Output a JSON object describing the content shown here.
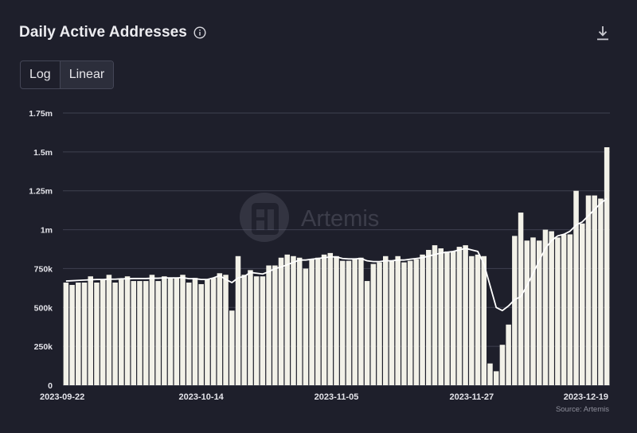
{
  "header": {
    "title": "Daily Active Addresses"
  },
  "toggle": {
    "log_label": "Log",
    "linear_label": "Linear"
  },
  "watermark": "Artemis",
  "source": "Source: Artemis",
  "colors": {
    "bar": "#f2f1e8",
    "line": "#ffffff",
    "grid": "#3e4050",
    "background": "#1e1f2b"
  },
  "chart_data": {
    "type": "bar",
    "title": "Daily Active Addresses",
    "xlabel": "",
    "ylabel": "",
    "ylim": [
      0,
      1750000
    ],
    "yticks": [
      0,
      250000,
      500000,
      750000,
      1000000,
      1250000,
      1500000,
      1750000
    ],
    "ytick_labels": [
      "0",
      "250k",
      "500k",
      "750k",
      "1m",
      "1.25m",
      "1.5m",
      "1.75m"
    ],
    "x_tick_labels": [
      "2023-09-22",
      "2023-10-14",
      "2023-11-05",
      "2023-11-27",
      "2023-12-19"
    ],
    "x_tick_index": [
      0,
      22,
      44,
      66,
      88
    ],
    "grid": true,
    "legend": "none",
    "start_date": "2023-09-22",
    "series": [
      {
        "type": "bar",
        "values": [
          660000,
          645000,
          660000,
          660000,
          700000,
          660000,
          680000,
          710000,
          660000,
          680000,
          700000,
          670000,
          670000,
          670000,
          710000,
          670000,
          700000,
          690000,
          690000,
          710000,
          660000,
          690000,
          650000,
          680000,
          690000,
          720000,
          710000,
          480000,
          830000,
          710000,
          740000,
          700000,
          700000,
          770000,
          770000,
          820000,
          840000,
          830000,
          820000,
          750000,
          810000,
          820000,
          840000,
          850000,
          830000,
          800000,
          800000,
          810000,
          820000,
          670000,
          780000,
          790000,
          830000,
          800000,
          830000,
          790000,
          800000,
          810000,
          840000,
          870000,
          900000,
          880000,
          860000,
          860000,
          890000,
          900000,
          830000,
          840000,
          830000,
          140000,
          90000,
          260000,
          390000,
          960000,
          1110000,
          930000,
          950000,
          930000,
          1000000,
          990000,
          950000,
          970000,
          970000,
          1250000,
          1040000,
          1220000,
          1220000,
          1200000,
          1530000
        ]
      },
      {
        "type": "line",
        "values": [
          670000,
          672000,
          674000,
          676000,
          678000,
          680000,
          680000,
          682000,
          682000,
          684000,
          684000,
          686000,
          686000,
          686000,
          688000,
          688000,
          690000,
          690000,
          690000,
          692000,
          685000,
          685000,
          680000,
          680000,
          690000,
          705000,
          680000,
          660000,
          690000,
          700000,
          725000,
          720000,
          715000,
          730000,
          750000,
          760000,
          775000,
          790000,
          805000,
          805000,
          810000,
          815000,
          820000,
          825000,
          825000,
          815000,
          812000,
          812000,
          815000,
          800000,
          795000,
          795000,
          800000,
          800000,
          805000,
          805000,
          810000,
          815000,
          820000,
          830000,
          840000,
          850000,
          855000,
          860000,
          870000,
          880000,
          870000,
          860000,
          780000,
          640000,
          500000,
          480000,
          510000,
          550000,
          570000,
          640000,
          720000,
          800000,
          880000,
          930000,
          960000,
          970000,
          990000,
          1030000,
          1050000,
          1090000,
          1130000,
          1170000,
          1200000
        ]
      }
    ]
  }
}
